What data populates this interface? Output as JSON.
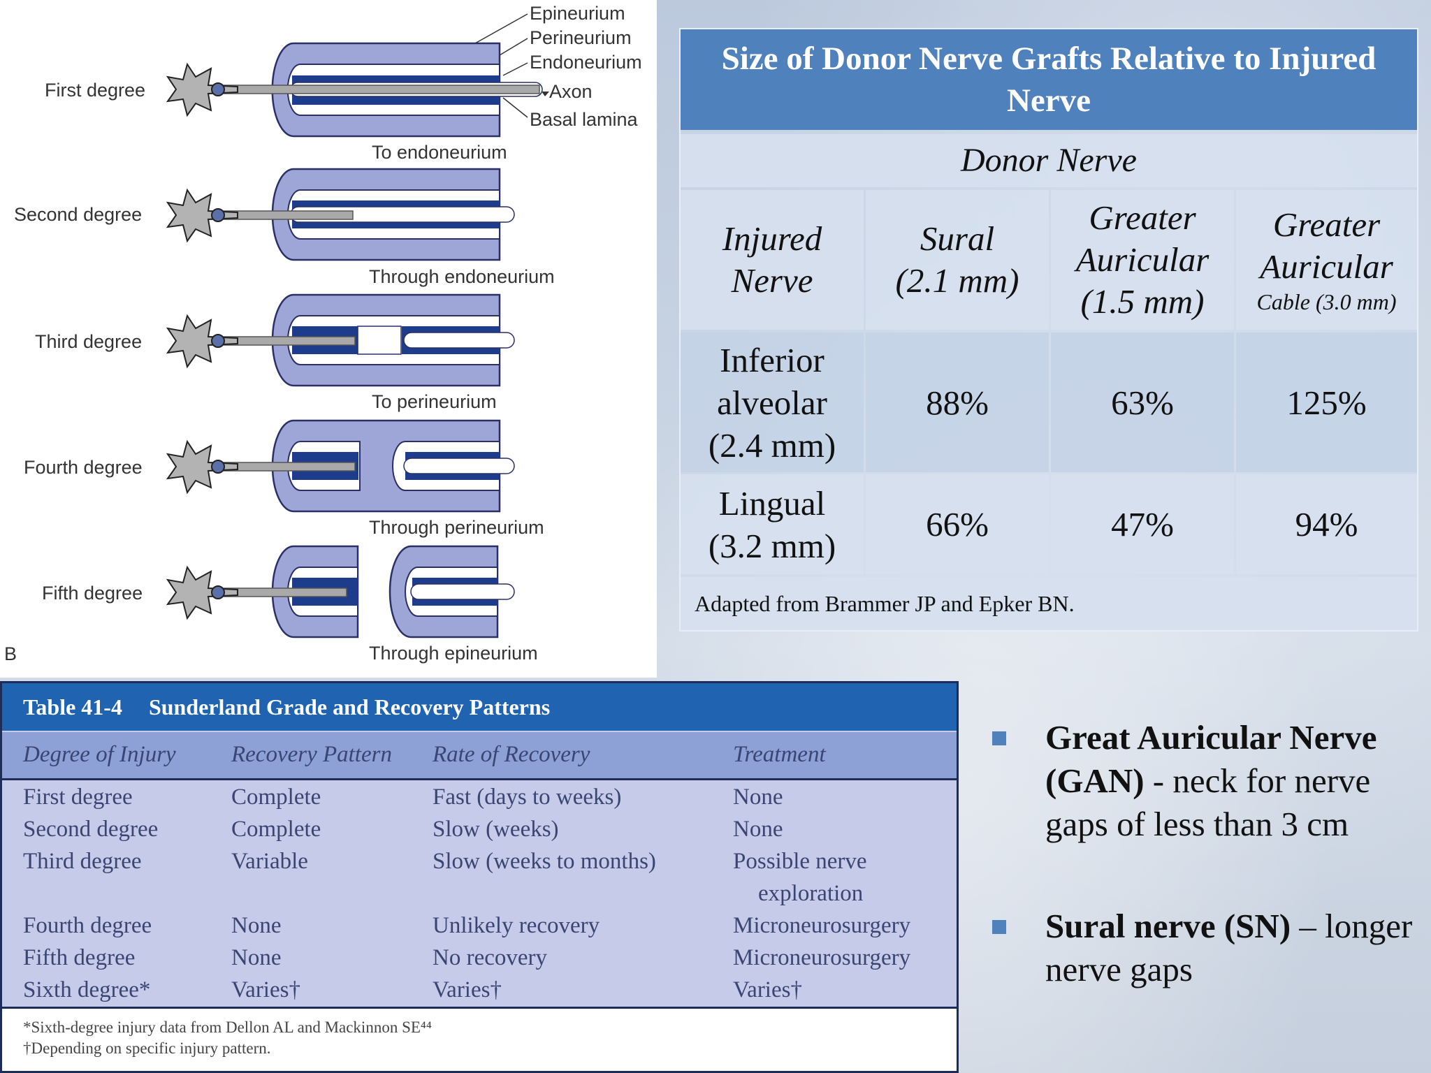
{
  "diagram": {
    "letter": "B",
    "structures": [
      "Epineurium",
      "Perineurium",
      "Endoneurium",
      "Axon",
      "Basal lamina"
    ],
    "degrees": [
      {
        "label": "First degree",
        "caption": "To endoneurium"
      },
      {
        "label": "Second degree",
        "caption": "Through endoneurium"
      },
      {
        "label": "Third degree",
        "caption": "To perineurium"
      },
      {
        "label": "Fourth degree",
        "caption": "Through perineurium"
      },
      {
        "label": "Fifth degree",
        "caption": "Through epineurium"
      }
    ]
  },
  "donor_table": {
    "title": "Size of Donor Nerve Grafts Relative to Injured Nerve",
    "subhead": "Donor Nerve",
    "headers": {
      "injured": [
        "Injured",
        "Nerve"
      ],
      "sural": [
        "Sural",
        "(2.1 mm)"
      ],
      "ga": [
        "Greater",
        "Auricular",
        "(1.5 mm)"
      ],
      "gac": [
        "Greater",
        "Auricular",
        "Cable (3.0 mm)"
      ]
    },
    "rows": [
      {
        "nerve": [
          "Inferior",
          "alveolar",
          "(2.4 mm)"
        ],
        "sural": "88%",
        "ga": "63%",
        "gac": "125%"
      },
      {
        "nerve": [
          "Lingual",
          "(3.2 mm)"
        ],
        "sural": "66%",
        "ga": "47%",
        "gac": "94%"
      }
    ],
    "footer": "Adapted from Brammer JP and Epker BN."
  },
  "sunderland": {
    "number": "Table 41-4",
    "title": "Sunderland Grade and Recovery Patterns",
    "columns": [
      "Degree of Injury",
      "Recovery Pattern",
      "Rate of Recovery",
      "Treatment"
    ],
    "rows": [
      [
        "First degree",
        "Complete",
        "Fast (days to weeks)",
        "None"
      ],
      [
        "Second degree",
        "Complete",
        "Slow (weeks)",
        "None"
      ],
      [
        "Third degree",
        "Variable",
        "Slow (weeks to months)",
        "Possible nerve"
      ],
      [
        "",
        "",
        "",
        "exploration"
      ],
      [
        "Fourth degree",
        "None",
        "Unlikely recovery",
        "Microneurosurgery"
      ],
      [
        "Fifth degree",
        "None",
        "No recovery",
        "Microneurosurgery"
      ],
      [
        "Sixth degree*",
        "Varies†",
        "Varies†",
        "Varies†"
      ]
    ],
    "notes": [
      "*Sixth-degree injury data from Dellon AL and Mackinnon SE⁴⁴",
      "†Depending on specific injury pattern."
    ]
  },
  "bullets": [
    {
      "bold": "Great Auricular Nerve (GAN)",
      "text": " - neck for nerve gaps of less than 3 cm"
    },
    {
      "bold": "Sural nerve (SN)",
      "text": " – longer nerve gaps"
    }
  ]
}
